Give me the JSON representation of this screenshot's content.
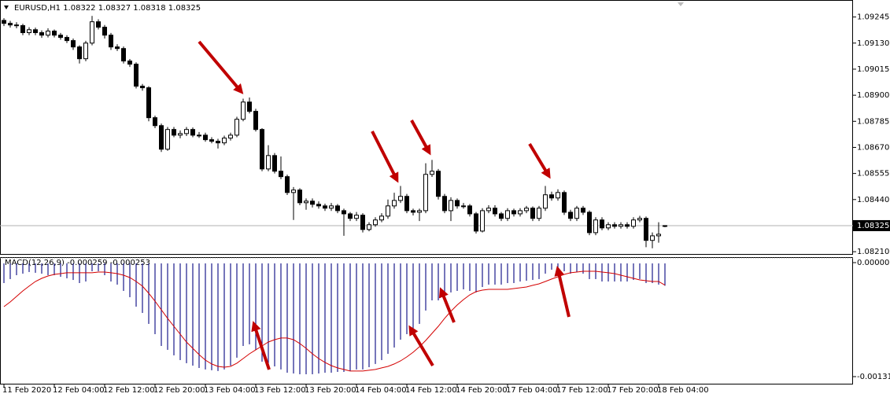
{
  "chart_data": [
    {
      "type": "candlestick",
      "title": "EURUSD,H1  1.08322 1.08327 1.08318 1.08325",
      "up_color": "#ffffff",
      "down_color": "#000000",
      "current_price": 1.08325,
      "categories": [
        "11 Feb 2020",
        null,
        null,
        null,
        null,
        null,
        null,
        null,
        "12 Feb 04:00",
        null,
        null,
        null,
        null,
        null,
        null,
        null,
        "12 Feb 12:00",
        null,
        null,
        null,
        null,
        null,
        null,
        null,
        "12 Feb 20:00",
        null,
        null,
        null,
        null,
        null,
        null,
        null,
        "13 Feb 04:00",
        null,
        null,
        null,
        null,
        null,
        null,
        null,
        "13 Feb 12:00",
        null,
        null,
        null,
        null,
        null,
        null,
        null,
        "13 Feb 20:00",
        null,
        null,
        null,
        null,
        null,
        null,
        null,
        "14 Feb 04:00",
        null,
        null,
        null,
        null,
        null,
        null,
        null,
        "14 Feb 12:00",
        null,
        null,
        null,
        null,
        null,
        null,
        null,
        "14 Feb 20:00",
        null,
        null,
        null,
        null,
        null,
        null,
        null,
        "17 Feb 04:00",
        null,
        null,
        null,
        null,
        null,
        null,
        null,
        "17 Feb 12:00",
        null,
        null,
        null,
        null,
        null,
        null,
        null,
        "17 Feb 20:00",
        null,
        null,
        null,
        null,
        null,
        null,
        null,
        "18 Feb 04:00",
        null
      ],
      "open": [
        1.0923,
        1.09217,
        1.0921,
        1.09207,
        1.09176,
        1.09189,
        1.09176,
        1.09165,
        1.09183,
        1.09165,
        1.09155,
        1.09141,
        1.09113,
        1.09061,
        1.0913,
        1.09224,
        1.092,
        1.09165,
        1.09113,
        1.09106,
        1.09051,
        1.09037,
        1.0894,
        1.08933,
        1.08801,
        1.08766,
        1.08662,
        1.08749,
        1.08724,
        1.08731,
        1.08749,
        1.08724,
        1.08724,
        1.08704,
        1.08697,
        1.0869,
        1.08711,
        1.08724,
        1.08794,
        1.0887,
        1.08829,
        1.08749,
        1.08575,
        1.08634,
        1.08565,
        1.08541,
        1.08471,
        1.08482,
        1.08426,
        1.08433,
        1.08419,
        1.08412,
        1.08402,
        1.08412,
        1.08391,
        1.08377,
        1.08357,
        1.08371,
        1.08308,
        1.08329,
        1.0835,
        1.08367,
        1.08412,
        1.08436,
        1.08454,
        1.08391,
        1.08384,
        1.08391,
        1.08551,
        1.08565,
        1.08454,
        1.08391,
        1.08436,
        1.08412,
        1.08412,
        1.08377,
        1.08301,
        1.08391,
        1.08402,
        1.08377,
        1.08357,
        1.08391,
        1.08377,
        1.08391,
        1.08402,
        1.08357,
        1.08402,
        1.08461,
        1.08447,
        1.08471,
        1.08384,
        1.08357,
        1.08402,
        1.08384,
        1.08294,
        1.0835,
        1.08315,
        1.08329,
        1.08322,
        1.08329,
        1.08322,
        1.0835,
        1.08357,
        1.0826,
        1.0828,
        1.08322
      ],
      "high": [
        1.0924,
        1.09228,
        1.09222,
        1.09215,
        1.092,
        1.09198,
        1.09186,
        1.09195,
        1.0919,
        1.09175,
        1.09165,
        1.0915,
        1.0912,
        1.0914,
        1.0925,
        1.09235,
        1.0921,
        1.09175,
        1.09125,
        1.09115,
        1.0906,
        1.09045,
        1.0895,
        1.0894,
        1.0881,
        1.08775,
        1.0876,
        1.0876,
        1.08745,
        1.0876,
        1.08758,
        1.08738,
        1.08735,
        1.08715,
        1.08708,
        1.08722,
        1.08735,
        1.08805,
        1.08885,
        1.0889,
        1.0884,
        1.08755,
        1.0868,
        1.08645,
        1.0863,
        1.0855,
        1.08495,
        1.0849,
        1.08445,
        1.08445,
        1.08432,
        1.08422,
        1.08425,
        1.0842,
        1.084,
        1.08385,
        1.08385,
        1.0838,
        1.0834,
        1.08362,
        1.0838,
        1.0844,
        1.0847,
        1.085,
        1.08465,
        1.084,
        1.084,
        1.086,
        1.08615,
        1.08575,
        1.08465,
        1.0845,
        1.08445,
        1.08425,
        1.0842,
        1.08385,
        1.08402,
        1.08415,
        1.08415,
        1.08385,
        1.08402,
        1.084,
        1.08402,
        1.08412,
        1.0841,
        1.08412,
        1.085,
        1.08475,
        1.08485,
        1.0848,
        1.08395,
        1.08412,
        1.08412,
        1.08392,
        1.08362,
        1.08362,
        1.0834,
        1.0834,
        1.0834,
        1.0834,
        1.08362,
        1.08368,
        1.08365,
        1.08295,
        1.0834,
        1.08327
      ],
      "low": [
        1.09205,
        1.09198,
        1.09195,
        1.09165,
        1.09165,
        1.09165,
        1.09153,
        1.09155,
        1.09155,
        1.09145,
        1.0913,
        1.091,
        1.0904,
        1.0905,
        1.0912,
        1.0919,
        1.0915,
        1.091,
        1.09095,
        1.0904,
        1.09025,
        1.0893,
        1.0892,
        1.08785,
        1.08755,
        1.0865,
        1.08655,
        1.08715,
        1.0871,
        1.0872,
        1.08715,
        1.08712,
        1.08695,
        1.08688,
        1.08665,
        1.0868,
        1.087,
        1.08715,
        1.08785,
        1.0882,
        1.0874,
        1.08565,
        1.08565,
        1.08555,
        1.0853,
        1.0846,
        1.0835,
        1.08415,
        1.08395,
        1.08405,
        1.084,
        1.0839,
        1.0839,
        1.0838,
        1.0828,
        1.08345,
        1.08345,
        1.08295,
        1.083,
        1.0832,
        1.0834,
        1.08355,
        1.084,
        1.08425,
        1.0838,
        1.0837,
        1.08345,
        1.0838,
        1.0854,
        1.0844,
        1.0838,
        1.08345,
        1.084,
        1.084,
        1.08365,
        1.0829,
        1.08295,
        1.0838,
        1.08365,
        1.08345,
        1.08345,
        1.08365,
        1.08365,
        1.0838,
        1.08345,
        1.08345,
        1.0839,
        1.08435,
        1.08435,
        1.08372,
        1.08345,
        1.08345,
        1.08372,
        1.08283,
        1.08283,
        1.08305,
        1.08305,
        1.08312,
        1.08312,
        1.08312,
        1.08312,
        1.0834,
        1.0823,
        1.08225,
        1.0825,
        1.08318
      ],
      "close": [
        1.09217,
        1.0921,
        1.09207,
        1.09176,
        1.09189,
        1.09176,
        1.09165,
        1.09183,
        1.09165,
        1.09155,
        1.09141,
        1.09113,
        1.09061,
        1.0913,
        1.09224,
        1.092,
        1.09165,
        1.09113,
        1.09106,
        1.09051,
        1.09037,
        1.0894,
        1.08933,
        1.08801,
        1.08766,
        1.08662,
        1.08749,
        1.08724,
        1.08731,
        1.08749,
        1.08724,
        1.08724,
        1.08704,
        1.08697,
        1.0869,
        1.08711,
        1.08724,
        1.08794,
        1.0887,
        1.08829,
        1.08749,
        1.08575,
        1.08634,
        1.08565,
        1.08541,
        1.08471,
        1.08482,
        1.08426,
        1.08433,
        1.08419,
        1.08412,
        1.08402,
        1.08412,
        1.08391,
        1.08377,
        1.08357,
        1.08371,
        1.08308,
        1.08329,
        1.0835,
        1.08367,
        1.08412,
        1.08436,
        1.08454,
        1.08391,
        1.08384,
        1.08391,
        1.08551,
        1.08565,
        1.08454,
        1.08391,
        1.08436,
        1.08412,
        1.08412,
        1.08377,
        1.08301,
        1.08391,
        1.08402,
        1.08377,
        1.08357,
        1.08391,
        1.08377,
        1.08391,
        1.08402,
        1.08357,
        1.08402,
        1.08461,
        1.08447,
        1.08471,
        1.08384,
        1.08357,
        1.08402,
        1.08384,
        1.08294,
        1.0835,
        1.08315,
        1.08329,
        1.08322,
        1.08329,
        1.08322,
        1.0835,
        1.08357,
        1.0826,
        1.0828,
        1.08287,
        1.08325
      ],
      "ylim": [
        1.082,
        1.0932
      ],
      "yticks": [
        1.09245,
        {
          "value": 1.0913,
          "label": "1.09130"
        },
        1.09015,
        {
          "value": 1.089,
          "label": "1.08900"
        },
        1.08785,
        {
          "value": 1.0867,
          "label": "1.08670"
        },
        1.08555,
        {
          "value": 1.0844,
          "label": "1.08440"
        },
        {
          "value": 1.0821,
          "label": "1.08210"
        }
      ]
    },
    {
      "type": "macd",
      "title": "MACD(12,26,9) -0.000259 -0.000253",
      "histogram": {
        "color": "#1a1a8c",
        "values": [
          -0.000228,
          -0.000182,
          -0.000137,
          -0.000119,
          -0.0001,
          -0.000109,
          -0.000119,
          -0.000137,
          -0.000137,
          -0.000155,
          -0.000173,
          -0.000192,
          -0.000228,
          -0.00021,
          -9.1e-05,
          -9.1e-05,
          -0.000137,
          -0.00021,
          -0.000246,
          -0.000319,
          -0.000392,
          -0.000502,
          -0.000575,
          -0.000702,
          -0.000821,
          -0.000958,
          -0.001003,
          -0.001067,
          -0.001122,
          -0.001158,
          -0.001186,
          -0.001213,
          -0.001231,
          -0.00124,
          -0.001249,
          -0.001231,
          -0.001186,
          -0.001094,
          -0.000958,
          -0.000939,
          -0.001003,
          -0.00114,
          -0.001158,
          -0.001195,
          -0.001231,
          -0.001268,
          -0.001277,
          -0.001286,
          -0.001286,
          -0.001286,
          -0.001277,
          -0.001268,
          -0.001268,
          -0.001259,
          -0.001259,
          -0.001249,
          -0.001231,
          -0.001231,
          -0.001204,
          -0.001167,
          -0.001122,
          -0.001049,
          -0.000976,
          -0.000885,
          -0.000821,
          -0.000775,
          -0.000702,
          -0.000547,
          -0.000429,
          -0.000429,
          -0.000392,
          -0.000337,
          -0.000319,
          -0.000301,
          -0.000319,
          -0.000337,
          -0.000274,
          -0.000246,
          -0.000246,
          -0.000246,
          -0.000228,
          -0.000228,
          -0.00021,
          -0.000201,
          -0.000192,
          -0.000182,
          -0.000119,
          -7.3e-05,
          -4.6e-05,
          -9.1e-05,
          -0.000119,
          -0.0001,
          -0.000119,
          -0.000182,
          -0.000182,
          -0.00021,
          -0.00021,
          -0.00021,
          -0.00021,
          -0.00021,
          -0.000192,
          -0.000182,
          -0.000228,
          -0.000228,
          -0.000246,
          -0.000259
        ]
      },
      "signal": {
        "color": "#d40000",
        "values": [
          -0.000502,
          -0.000447,
          -0.000383,
          -0.000319,
          -0.000264,
          -0.00021,
          -0.000173,
          -0.000146,
          -0.000128,
          -0.000119,
          -0.000109,
          -0.000109,
          -0.000109,
          -0.000109,
          -0.000109,
          -0.0001,
          -0.0001,
          -0.000109,
          -0.000119,
          -0.000137,
          -0.000164,
          -0.00021,
          -0.000264,
          -0.000347,
          -0.000438,
          -0.000538,
          -0.000638,
          -0.00073,
          -0.000821,
          -0.000912,
          -0.000985,
          -0.001058,
          -0.001122,
          -0.001167,
          -0.001195,
          -0.001204,
          -0.001195,
          -0.001158,
          -0.001104,
          -0.001049,
          -0.001003,
          -0.000958,
          -0.000912,
          -0.000885,
          -0.000866,
          -0.000866,
          -0.000885,
          -0.00093,
          -0.000985,
          -0.001049,
          -0.001104,
          -0.001149,
          -0.001186,
          -0.001213,
          -0.001231,
          -0.001249,
          -0.001249,
          -0.001249,
          -0.00124,
          -0.001231,
          -0.001213,
          -0.001195,
          -0.001167,
          -0.001131,
          -0.001085,
          -0.001031,
          -0.000967,
          -0.000894,
          -0.000812,
          -0.00073,
          -0.000638,
          -0.000556,
          -0.000483,
          -0.00042,
          -0.000365,
          -0.000328,
          -0.00031,
          -0.000301,
          -0.000301,
          -0.000301,
          -0.000301,
          -0.000292,
          -0.000283,
          -0.000274,
          -0.000255,
          -0.000237,
          -0.00021,
          -0.000182,
          -0.000155,
          -0.000128,
          -0.000109,
          -0.0001,
          -9.1e-05,
          -9.1e-05,
          -9.1e-05,
          -0.0001,
          -0.000109,
          -0.000119,
          -0.000137,
          -0.000155,
          -0.000173,
          -0.000192,
          -0.000201,
          -0.00021,
          -0.00021,
          -0.000253
        ]
      },
      "ylim": [
        -0.001396,
        7.3e-05
      ],
      "yticks": [
        9e-06,
        -0.001314
      ]
    }
  ]
}
